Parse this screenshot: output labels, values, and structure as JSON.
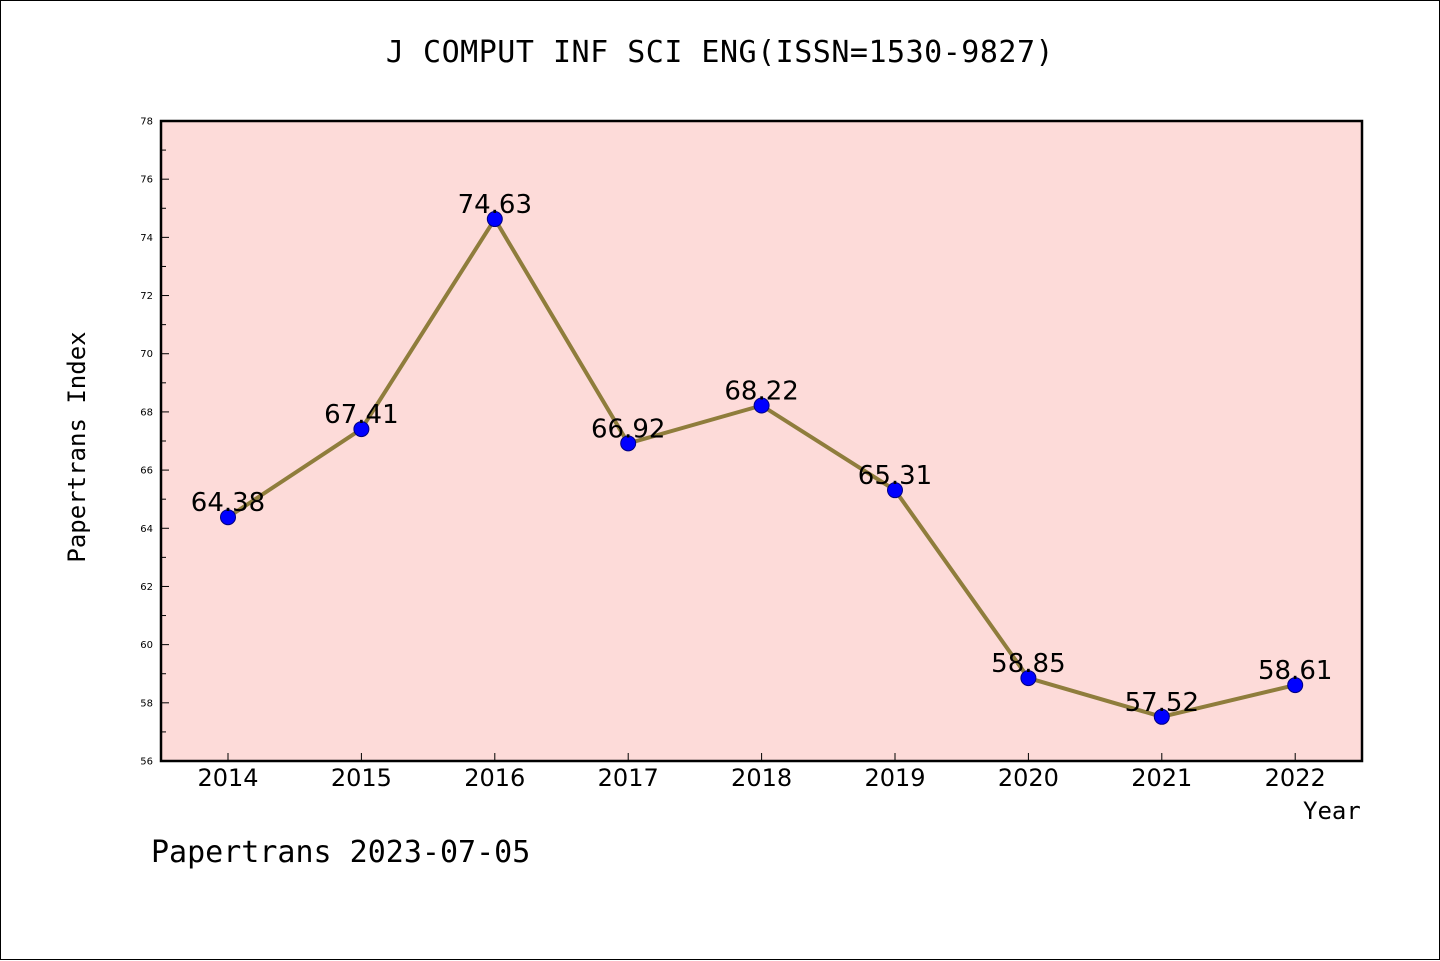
{
  "chart_data": {
    "type": "line",
    "title": "J COMPUT INF SCI ENG(ISSN=1530-9827)",
    "xlabel": "Year",
    "ylabel": "Papertrans Index",
    "categories": [
      "2014",
      "2015",
      "2016",
      "2017",
      "2018",
      "2019",
      "2020",
      "2021",
      "2022"
    ],
    "values": [
      64.38,
      67.41,
      74.63,
      66.92,
      68.22,
      65.31,
      58.85,
      57.52,
      58.61
    ],
    "data_labels": [
      "64.38",
      "67.41",
      "74.63",
      "66.92",
      "68.22",
      "65.31",
      "58.85",
      "57.52",
      "58.61"
    ],
    "ylim": [
      56,
      78
    ],
    "yticks": [
      56,
      58,
      60,
      62,
      64,
      66,
      68,
      70,
      72,
      74,
      76,
      78
    ],
    "grid": false,
    "colors": {
      "plot_background": "#fddbd9",
      "line": "#8f7d3c",
      "marker_fill": "#0000ff",
      "marker_edge": "#000080"
    }
  },
  "footer": "Papertrans 2023-07-05"
}
